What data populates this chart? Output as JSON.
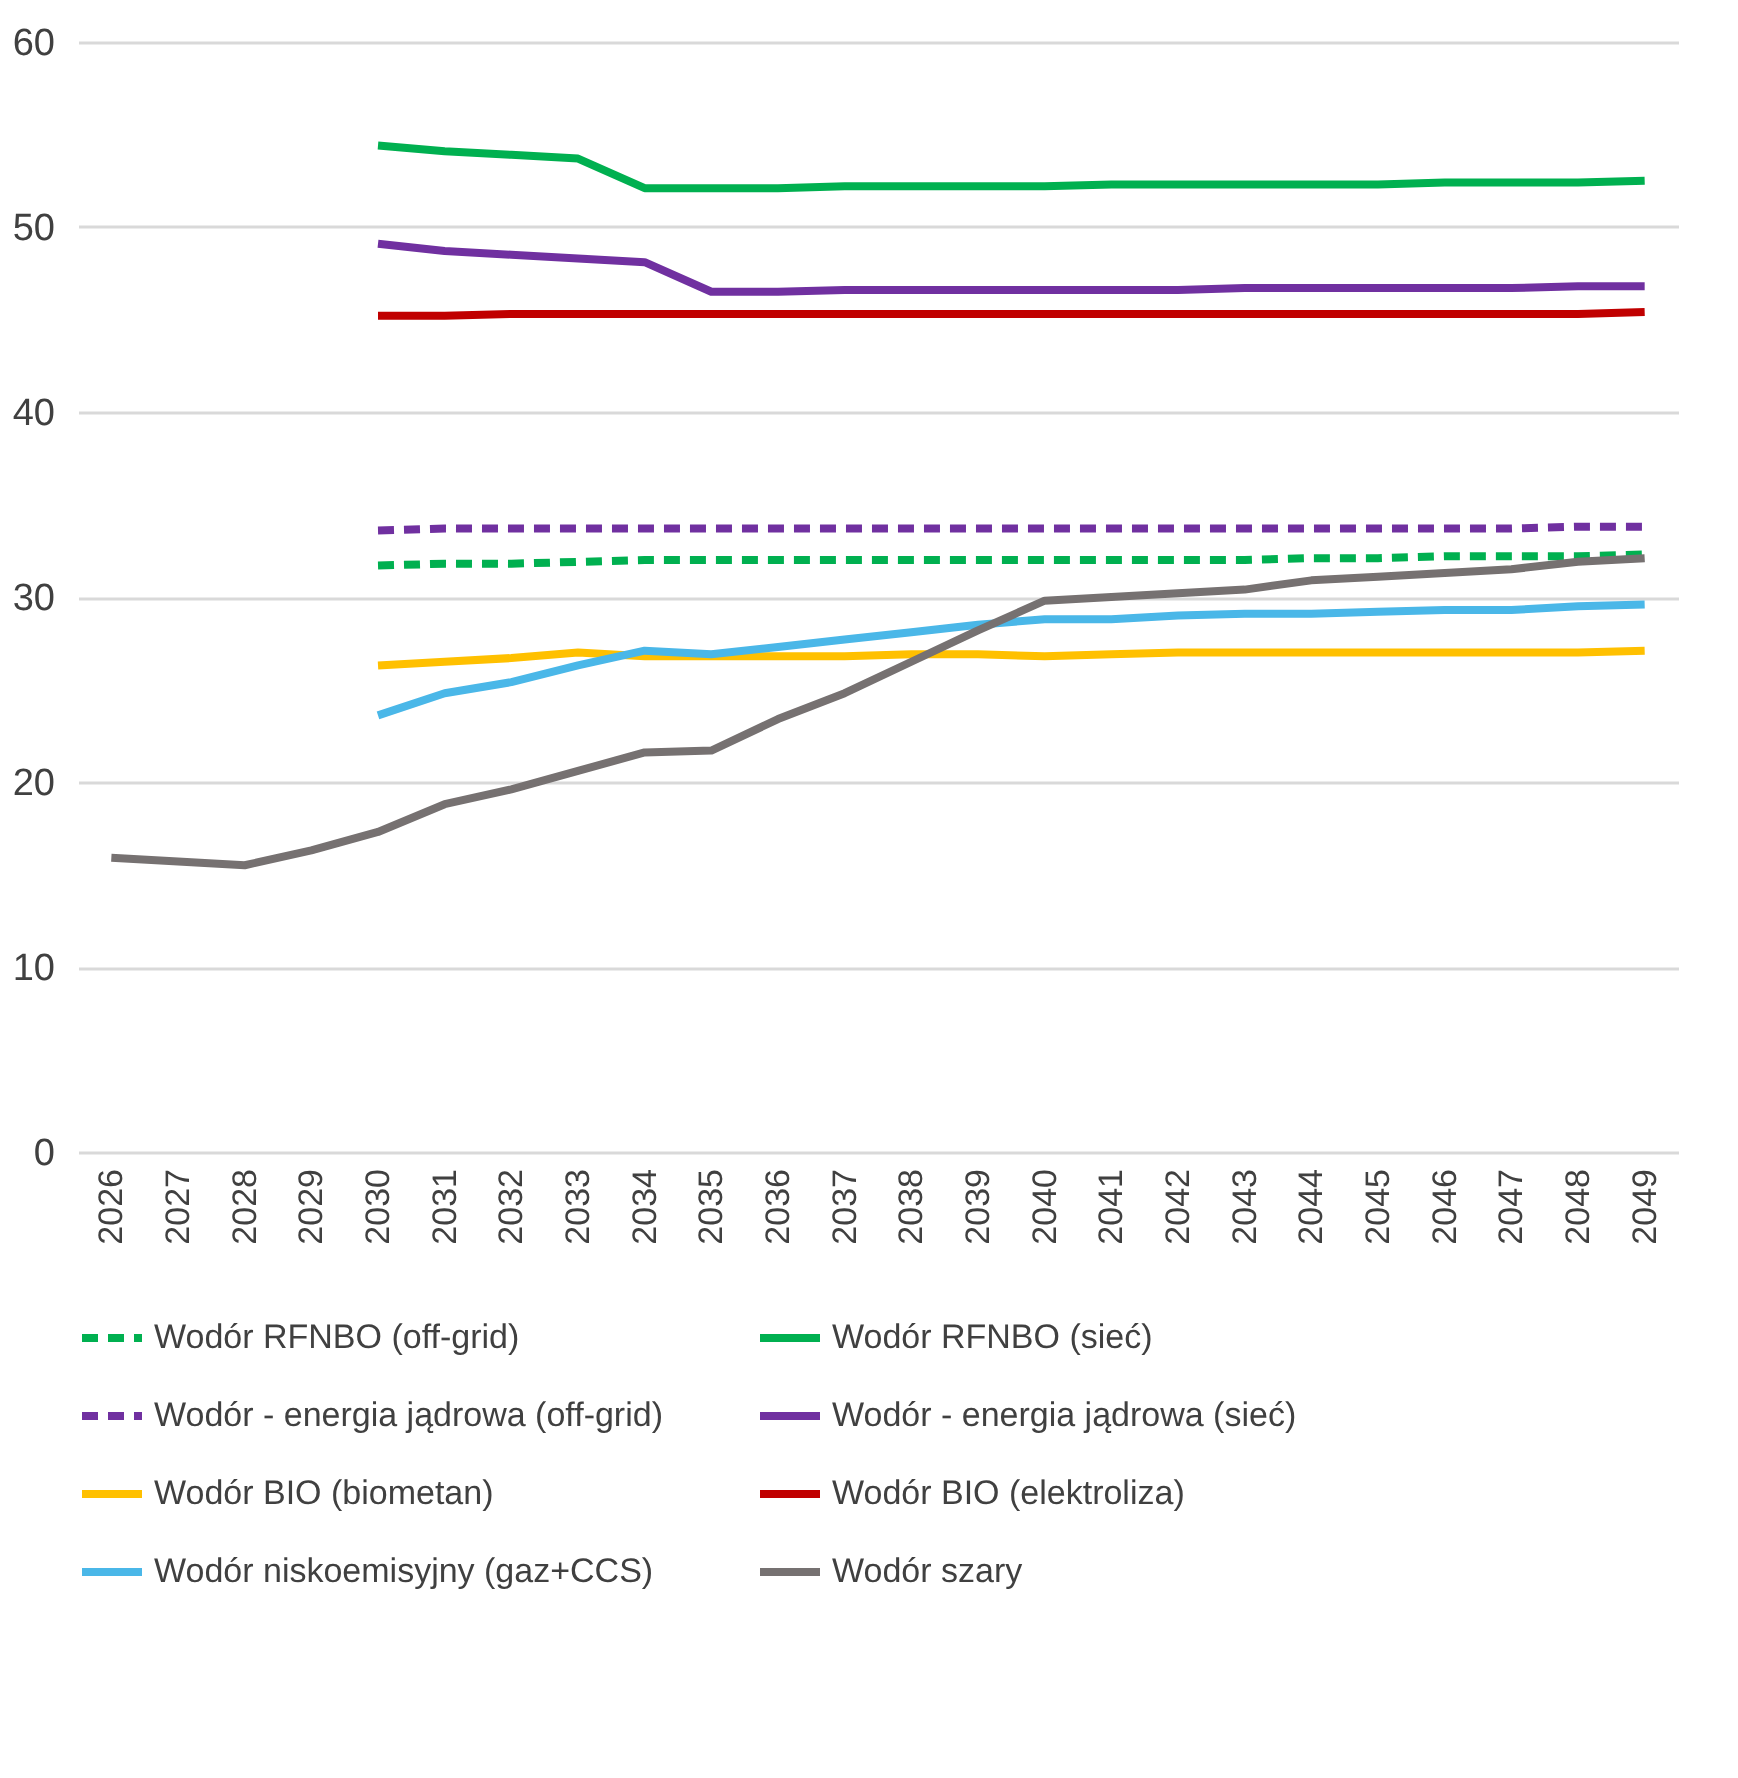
{
  "chart_data": {
    "type": "line",
    "categories": [
      "2026",
      "2027",
      "2028",
      "2029",
      "2030",
      "2031",
      "2032",
      "2033",
      "2034",
      "2035",
      "2036",
      "2037",
      "2038",
      "2039",
      "2040",
      "2041",
      "2042",
      "2043",
      "2044",
      "2045",
      "2046",
      "2047",
      "2048",
      "2049"
    ],
    "series": [
      {
        "name": "Wodór RFNBO (off-grid)",
        "color": "#00b050",
        "line_style": "dashed",
        "values": [
          null,
          null,
          null,
          null,
          31.7,
          31.8,
          31.8,
          31.9,
          32.0,
          32.0,
          32.0,
          32.0,
          32.0,
          32.0,
          32.0,
          32.0,
          32.0,
          32.0,
          32.1,
          32.1,
          32.2,
          32.2,
          32.2,
          32.3
        ]
      },
      {
        "name": "Wodór RFNBO (sieć)",
        "color": "#00b050",
        "line_style": "solid",
        "values": [
          null,
          null,
          null,
          null,
          54.4,
          54.1,
          53.9,
          53.7,
          52.1,
          52.1,
          52.1,
          52.2,
          52.2,
          52.2,
          52.2,
          52.3,
          52.3,
          52.3,
          52.3,
          52.3,
          52.4,
          52.4,
          52.4,
          52.5
        ]
      },
      {
        "name": "Wodór - energia jądrowa (off-grid)",
        "color": "#7030a0",
        "line_style": "dashed",
        "values": [
          null,
          null,
          null,
          null,
          33.6,
          33.7,
          33.7,
          33.7,
          33.7,
          33.7,
          33.7,
          33.7,
          33.7,
          33.7,
          33.7,
          33.7,
          33.7,
          33.7,
          33.7,
          33.7,
          33.7,
          33.7,
          33.8,
          33.8
        ]
      },
      {
        "name": "Wodór - energia jądrowa (sieć)",
        "color": "#7030a0",
        "line_style": "solid",
        "values": [
          null,
          null,
          null,
          null,
          49.1,
          48.7,
          48.5,
          48.3,
          48.1,
          46.5,
          46.5,
          46.6,
          46.6,
          46.6,
          46.6,
          46.6,
          46.6,
          46.7,
          46.7,
          46.7,
          46.7,
          46.7,
          46.8,
          46.8
        ]
      },
      {
        "name": "Wodór BIO (biometan)",
        "color": "#ffc000",
        "line_style": "solid",
        "values": [
          null,
          null,
          null,
          null,
          26.3,
          26.5,
          26.7,
          27.0,
          26.8,
          26.8,
          26.8,
          26.8,
          26.9,
          26.9,
          26.8,
          26.9,
          27.0,
          27.0,
          27.0,
          27.0,
          27.0,
          27.0,
          27.0,
          27.1
        ]
      },
      {
        "name": "Wodór BIO (elektroliza)",
        "color": "#c00000",
        "line_style": "solid",
        "values": [
          null,
          null,
          null,
          null,
          45.2,
          45.2,
          45.3,
          45.3,
          45.3,
          45.3,
          45.3,
          45.3,
          45.3,
          45.3,
          45.3,
          45.3,
          45.3,
          45.3,
          45.3,
          45.3,
          45.3,
          45.3,
          45.3,
          45.4
        ]
      },
      {
        "name": "Wodór niskoemisyjny (gaz+CCS)",
        "color": "#4ab7e8",
        "line_style": "solid",
        "values": [
          null,
          null,
          null,
          null,
          23.6,
          24.8,
          25.4,
          26.3,
          27.1,
          26.9,
          27.3,
          27.7,
          28.1,
          28.5,
          28.8,
          28.8,
          29.0,
          29.1,
          29.1,
          29.2,
          29.3,
          29.3,
          29.5,
          29.6
        ]
      },
      {
        "name": "Wodór szary",
        "color": "#767171",
        "line_style": "solid",
        "values": [
          15.9,
          15.7,
          15.5,
          16.3,
          17.3,
          18.8,
          19.6,
          20.6,
          21.6,
          21.7,
          23.4,
          24.8,
          26.5,
          28.2,
          29.8,
          30.0,
          30.2,
          30.4,
          30.9,
          31.1,
          31.3,
          31.5,
          31.9,
          32.1
        ]
      }
    ],
    "ylim": [
      0,
      60
    ],
    "yticks": [
      0,
      10,
      20,
      30,
      40,
      50,
      60
    ],
    "grid": "y",
    "legend": "bottom"
  }
}
